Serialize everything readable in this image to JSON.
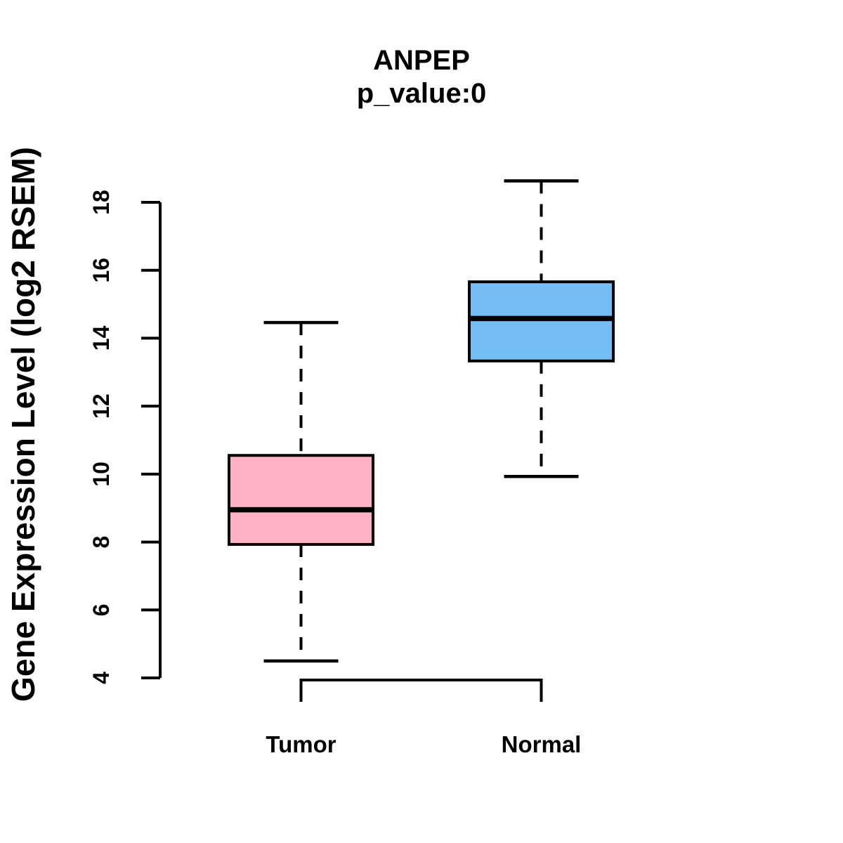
{
  "figure": {
    "title": "ANPEP",
    "subtitle": "p_value:0",
    "y_axis_label": "Gene Expression Level (log2 RSEM)"
  },
  "chart_data": {
    "type": "boxplot",
    "title": "ANPEP",
    "subtitle": "p_value:0",
    "ylabel": "Gene Expression Level (log2 RSEM)",
    "xlabel": "",
    "categories": [
      "Tumor",
      "Normal"
    ],
    "ylim": [
      4,
      18
    ],
    "yticks": [
      4,
      6,
      8,
      10,
      12,
      14,
      16,
      18
    ],
    "grid": false,
    "legend": "none",
    "series": [
      {
        "name": "Tumor",
        "color": "#FFB1C5",
        "whisker_low": 4.5,
        "q1": 7.93,
        "median": 8.95,
        "q3": 10.55,
        "whisker_high": 14.46
      },
      {
        "name": "Normal",
        "color": "#75BDF5",
        "whisker_low": 9.93,
        "q1": 13.33,
        "median": 14.58,
        "q3": 15.66,
        "whisker_high": 18.63
      }
    ],
    "line_color": "#000000",
    "background_color": "#ffffff"
  }
}
